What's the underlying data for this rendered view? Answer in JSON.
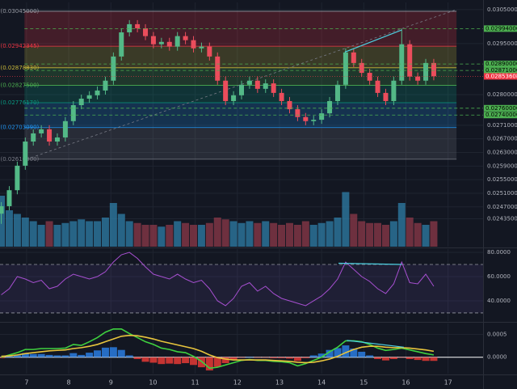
{
  "chart_data": [
    {
      "type": "candlestick",
      "x": [
        6.4,
        6.59,
        6.78,
        6.97,
        7.16,
        7.35,
        7.54,
        7.73,
        7.92,
        8.11,
        8.3,
        8.49,
        8.68,
        8.87,
        9.06,
        9.25,
        9.44,
        9.63,
        9.82,
        10.01,
        10.2,
        10.39,
        10.58,
        10.77,
        10.96,
        11.15,
        11.34,
        11.53,
        11.72,
        11.91,
        12.1,
        12.29,
        12.48,
        12.67,
        12.86,
        13.05,
        13.24,
        13.43,
        13.62,
        13.81,
        14,
        14.19,
        14.38,
        14.57,
        14.76,
        14.95,
        15.14,
        15.33,
        15.52,
        15.71,
        15.9,
        16.09,
        16.28,
        16.47,
        16.66
      ],
      "open": [
        0.0245,
        0.02472,
        0.02519,
        0.02591,
        0.02662,
        0.02686,
        0.02698,
        0.02662,
        0.02674,
        0.02722,
        0.02769,
        0.02788,
        0.02798,
        0.02812,
        0.02841,
        0.02912,
        0.02983,
        0.03007,
        0.02995,
        0.02972,
        0.02948,
        0.02955,
        0.02941,
        0.02972,
        0.0296,
        0.02936,
        0.02941,
        0.02912,
        0.02841,
        0.02781,
        0.02798,
        0.02829,
        0.02841,
        0.02817,
        0.02833,
        0.02805,
        0.02781,
        0.02757,
        0.02734,
        0.02722,
        0.02726,
        0.02745,
        0.02781,
        0.02829,
        0.02924,
        0.02893,
        0.02864,
        0.02841,
        0.02805,
        0.02781,
        0.02841,
        0.02948,
        0.02853,
        0.02841,
        0.02893
      ],
      "high": [
        0.02484,
        0.02531,
        0.02603,
        0.02674,
        0.02698,
        0.0271,
        0.0271,
        0.02686,
        0.02734,
        0.02781,
        0.028,
        0.0281,
        0.02824,
        0.02853,
        0.02924,
        0.02995,
        0.03019,
        0.03019,
        0.03007,
        0.02984,
        0.02967,
        0.02967,
        0.02984,
        0.02984,
        0.02972,
        0.02953,
        0.02953,
        0.02924,
        0.02853,
        0.0281,
        0.02841,
        0.02853,
        0.02853,
        0.02845,
        0.02845,
        0.02817,
        0.02793,
        0.02769,
        0.02746,
        0.02738,
        0.02757,
        0.02793,
        0.02841,
        0.02936,
        0.02936,
        0.02905,
        0.02876,
        0.02853,
        0.02817,
        0.02853,
        0.02994,
        0.0296,
        0.02865,
        0.02905,
        0.02905
      ],
      "low": [
        0.0242,
        0.0246,
        0.02507,
        0.02579,
        0.0265,
        0.02674,
        0.0265,
        0.0265,
        0.02662,
        0.0271,
        0.02757,
        0.02776,
        0.02786,
        0.028,
        0.02829,
        0.029,
        0.02971,
        0.02983,
        0.0296,
        0.02936,
        0.02936,
        0.02929,
        0.02929,
        0.02948,
        0.02924,
        0.02924,
        0.029,
        0.02829,
        0.02769,
        0.02769,
        0.02786,
        0.02817,
        0.02805,
        0.02805,
        0.02793,
        0.02769,
        0.02745,
        0.02722,
        0.0271,
        0.0271,
        0.02714,
        0.02733,
        0.02769,
        0.02817,
        0.02881,
        0.02852,
        0.02829,
        0.02793,
        0.02769,
        0.02769,
        0.02829,
        0.02841,
        0.02829,
        0.02829,
        0.02842
      ],
      "close": [
        0.02472,
        0.02519,
        0.02591,
        0.02662,
        0.02686,
        0.02698,
        0.02662,
        0.02674,
        0.02722,
        0.02769,
        0.02788,
        0.02798,
        0.02812,
        0.02841,
        0.02912,
        0.02983,
        0.03007,
        0.02995,
        0.02972,
        0.02948,
        0.02955,
        0.02941,
        0.02972,
        0.0296,
        0.02936,
        0.02941,
        0.02912,
        0.02841,
        0.02781,
        0.02798,
        0.02829,
        0.02841,
        0.02817,
        0.02833,
        0.02805,
        0.02781,
        0.02757,
        0.02734,
        0.02722,
        0.02726,
        0.02745,
        0.02781,
        0.02829,
        0.02924,
        0.02893,
        0.02864,
        0.02841,
        0.02805,
        0.02781,
        0.02841,
        0.02948,
        0.02853,
        0.02841,
        0.02893,
        0.02854
      ],
      "colors": {
        "up": "#53b987",
        "down": "#eb4d5c",
        "volume_up": "#2f7fa8",
        "volume_down": "#8e3a4a"
      },
      "volume": [
        140,
        100,
        90,
        80,
        70,
        60,
        70,
        60,
        65,
        70,
        75,
        70,
        70,
        80,
        120,
        90,
        70,
        65,
        60,
        60,
        55,
        60,
        70,
        65,
        60,
        60,
        65,
        80,
        75,
        70,
        65,
        70,
        65,
        70,
        65,
        60,
        65,
        60,
        70,
        60,
        65,
        70,
        80,
        150,
        90,
        70,
        65,
        65,
        60,
        70,
        120,
        80,
        65,
        60,
        70
      ],
      "xlim": [
        6.37,
        17.83
      ],
      "xticks": [
        7,
        8,
        9,
        10,
        11,
        12,
        13,
        14,
        15,
        16,
        17
      ],
      "ylim": [
        0.02353,
        0.03071
      ],
      "yticks": [
        {
          "value": 0.0305,
          "label": "0.03050000"
        },
        {
          "value": 0.0295,
          "label": "0.02950000"
        },
        {
          "value": 0.028,
          "label": "0.02800000"
        },
        {
          "value": 0.0271,
          "label": "0.02710000"
        },
        {
          "value": 0.0267,
          "label": "0.02670000"
        },
        {
          "value": 0.0263,
          "label": "0.02630000"
        },
        {
          "value": 0.0259,
          "label": "0.02590000"
        },
        {
          "value": 0.0255,
          "label": "0.02550000"
        },
        {
          "value": 0.0251,
          "label": "0.02510000"
        },
        {
          "value": 0.0247,
          "label": "0.02470000"
        },
        {
          "value": 0.02435,
          "label": "0.02435000"
        }
      ],
      "grid": true,
      "fib": {
        "x": [
          6.95,
          17.2
        ],
        "levels": [
          {
            "value": 0.03045,
            "label": "0(0.03045000)",
            "color": "#9598a1"
          },
          {
            "value": 0.02942345,
            "label": "0.236(0.02942345)",
            "color": "#f23645"
          },
          {
            "value": 0.0287883,
            "label": "0.382(0.02878830)",
            "color": "#c9b93a"
          },
          {
            "value": 0.028275,
            "label": "0.5(0.02827500)",
            "color": "#4caf50"
          },
          {
            "value": 0.0277617,
            "label": "0.618(0.02776170)",
            "color": "#089981"
          },
          {
            "value": 0.0270309,
            "label": "0.786(0.02703090)",
            "color": "#2196f3"
          },
          {
            "value": 0.0261,
            "label": "1(0.02610000)",
            "color": "#787b86"
          }
        ]
      },
      "hlines": [
        {
          "value": 0.02994,
          "label": "0.02994000"
        },
        {
          "value": 0.0289,
          "label": "0.02890000"
        },
        {
          "value": 0.02871,
          "label": "0.02871000"
        },
        {
          "value": 0.0276,
          "label": "0.02760000"
        },
        {
          "value": 0.0274,
          "label": "0.02740000"
        }
      ],
      "hline_color": "#4caf50",
      "last_price": {
        "value": 0.02853608,
        "label": "0.02853608",
        "color": "#f23645"
      },
      "trendlines": [
        {
          "x": [
            7,
            17.2
          ],
          "y": [
            0.0261,
            0.0305
          ],
          "color": "#787b86",
          "dashed": true
        },
        {
          "x": [
            14.55,
            15.9
          ],
          "y": [
            0.02925,
            0.0299
          ],
          "color": "#4dd0e1",
          "dashed": false
        }
      ]
    },
    {
      "type": "line",
      "values": [
        45,
        50,
        60,
        58,
        55,
        57,
        50,
        52,
        58,
        62,
        60,
        58,
        60,
        64,
        72,
        78,
        80,
        75,
        68,
        62,
        60,
        58,
        62,
        58,
        55,
        57,
        50,
        40,
        36,
        42,
        52,
        55,
        48,
        52,
        46,
        42,
        40,
        38,
        36,
        40,
        44,
        50,
        58,
        72,
        66,
        60,
        56,
        50,
        46,
        54,
        72,
        55,
        54,
        62,
        52
      ],
      "color": "#a64fd0",
      "ylim": [
        23.3,
        82.7
      ],
      "yticks": [
        {
          "value": 80,
          "label": "80.0000"
        },
        {
          "value": 60,
          "label": "60.0000"
        },
        {
          "value": 40,
          "label": "40.0000"
        }
      ],
      "bands": [
        70,
        30
      ],
      "band_fill": "#7e57c2",
      "trendlines": [
        {
          "x": [
            14.4,
            15.9
          ],
          "y": [
            71,
            70
          ],
          "color": "#4dd0e1",
          "dashed": false
        }
      ]
    },
    {
      "type": "macd",
      "series": [
        {
          "color": "#3fd13f",
          "values": [
            0,
            5e-05,
            0.0001,
            0.00017,
            0.00017,
            0.00019,
            0.00019,
            0.00019,
            0.0002,
            0.00028,
            0.00026,
            0.00034,
            0.00043,
            0.00055,
            0.00062,
            0.00062,
            0.00052,
            0.00043,
            0.00034,
            0.00028,
            0.0002,
            0.00017,
            0.00012,
            0.0001,
            2e-05,
            -9e-05,
            -0.00024,
            -0.00022,
            -0.00017,
            -0.00012,
            -7e-05,
            -5e-05,
            -7e-05,
            -7e-05,
            -9e-05,
            -0.0001,
            -0.00012,
            -0.00019,
            -0.00014,
            -7e-05,
            0,
            0.00012,
            0.00022,
            0.00036,
            0.00036,
            0.00034,
            0.00028,
            0.0002,
            0.00015,
            0.00017,
            0.0002,
            0.00016,
            0.00012,
            8e-05,
            5e-05
          ]
        },
        {
          "color": "#e8c53d",
          "values": [
            2e-05,
            3e-05,
            5e-05,
            8e-05,
            0.0001,
            0.00012,
            0.00014,
            0.00015,
            0.00016,
            0.00019,
            0.00021,
            0.00024,
            0.00028,
            0.00034,
            0.0004,
            0.00046,
            0.00048,
            0.00047,
            0.00044,
            0.0004,
            0.00035,
            0.00031,
            0.00027,
            0.00023,
            0.00019,
            0.00013,
            5e-05,
            -1e-05,
            -4e-05,
            -6e-05,
            -6e-05,
            -6e-05,
            -6e-05,
            -6e-05,
            -7e-05,
            -8e-05,
            -9e-05,
            -0.00011,
            -0.00012,
            -0.00011,
            -8e-05,
            -4e-05,
            2e-05,
            0.0001,
            0.00017,
            0.00022,
            0.00024,
            0.00024,
            0.00022,
            0.00021,
            0.00021,
            0.0002,
            0.00018,
            0.00016,
            0.00013
          ]
        }
      ],
      "histogram": [
        -2e-05,
        2e-05,
        5e-05,
        9e-05,
        7e-05,
        7e-05,
        5e-05,
        4e-05,
        4e-05,
        9e-05,
        5e-05,
        0.0001,
        0.00015,
        0.00021,
        0.00022,
        0.00016,
        4e-05,
        -4e-05,
        -0.0001,
        -0.00012,
        -0.00015,
        -0.00014,
        -0.00015,
        -0.00013,
        -0.00017,
        -0.00022,
        -0.00029,
        -0.00021,
        -0.00013,
        -6e-05,
        -1e-05,
        1e-05,
        -1e-05,
        -1e-05,
        -2e-05,
        -2e-05,
        -3e-05,
        -8e-05,
        -2e-05,
        4e-05,
        8e-05,
        0.00016,
        0.0002,
        0.00026,
        0.00019,
        0.00012,
        4e-05,
        -4e-05,
        -7e-05,
        -4e-05,
        -1e-05,
        -4e-05,
        -6e-05,
        -8e-05,
        -8e-05
      ],
      "histogram_colors": {
        "up": "#2a7de1",
        "down": "#e53935"
      },
      "ylim": [
        -0.00036,
        0.00074
      ],
      "yticks": [
        0.0005,
        {
          "value": 0,
          "label": "0.0000"
        }
      ],
      "zero_line_color": "#ffffff",
      "trendlines": [
        {
          "x": [
            14.6,
            15.95
          ],
          "y": [
            0.00037,
            0.00022
          ],
          "color": "#4dd0e1",
          "dashed": false
        }
      ]
    }
  ]
}
